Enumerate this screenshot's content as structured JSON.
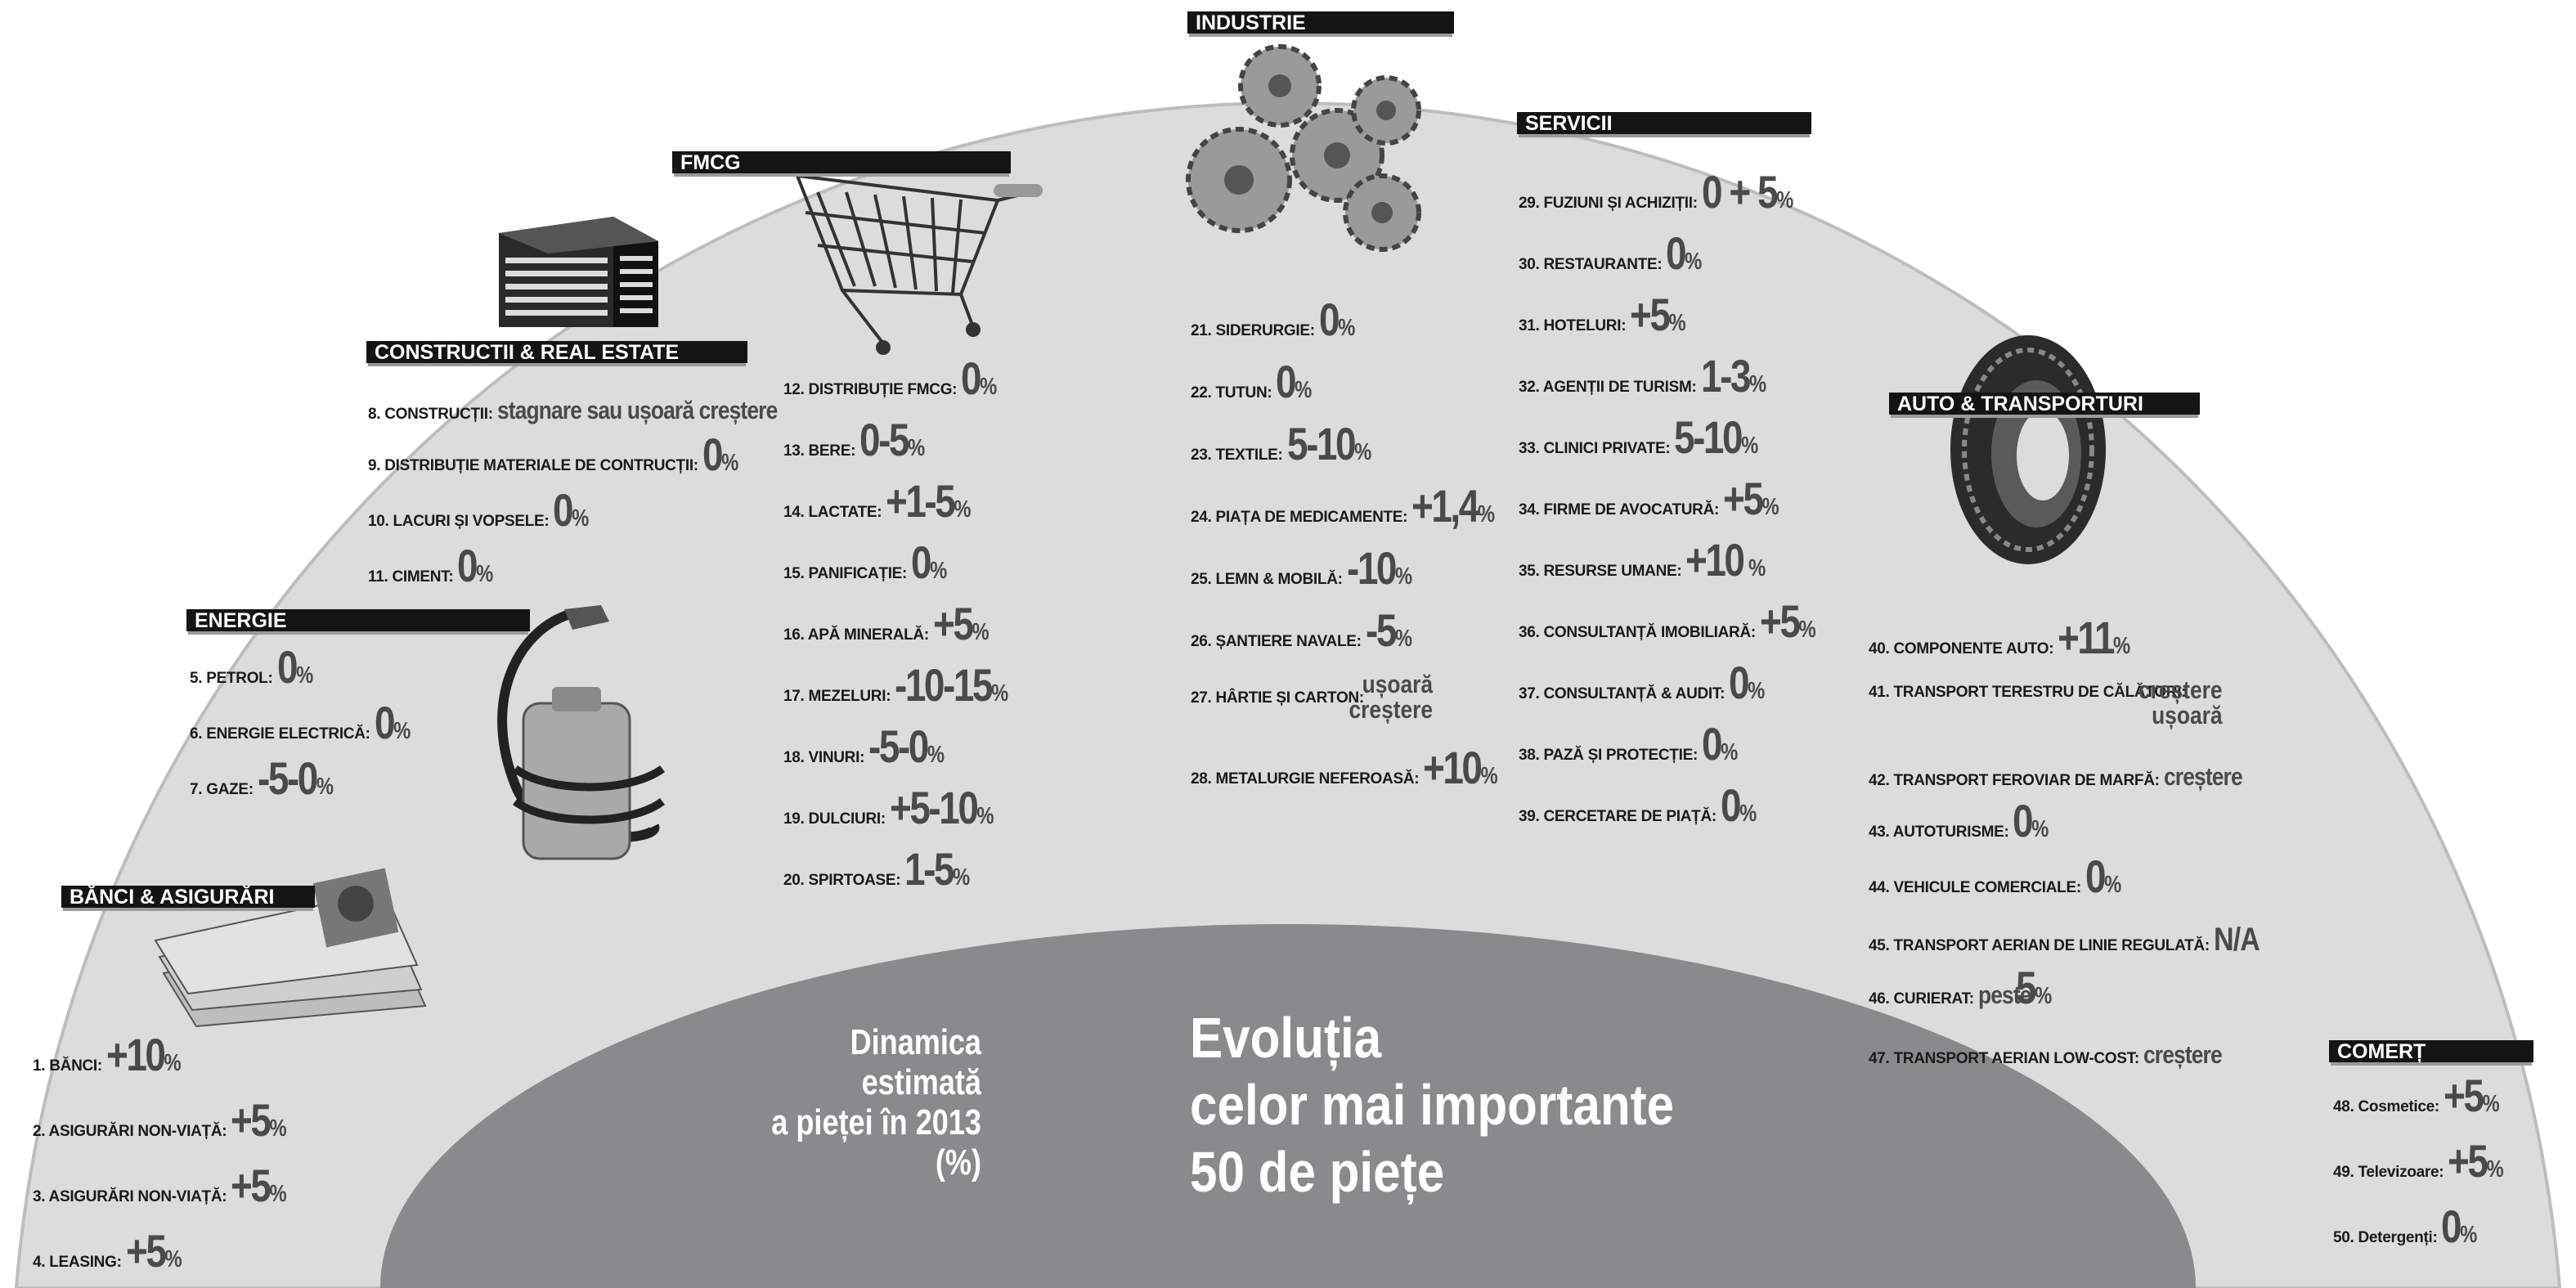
{
  "title": {
    "left": [
      "Dinamica",
      "estimată",
      "a pieței în 2013",
      "(%)"
    ],
    "right": [
      "Evoluția",
      "celor mai importante",
      "50 de piețe"
    ]
  },
  "colors": {
    "background_semicircle": "#dcdcdc",
    "inner_semicircle": "#8a8a8c",
    "header_bar": "#141414",
    "value_text": "#4a4a4a"
  },
  "icons": {
    "constructii": "office-building-icon",
    "fmcg": "shopping-cart-icon",
    "industrie": "gears-icon",
    "auto": "tire-icon",
    "energie": "fuel-canister-icon",
    "banci": "banknotes-icon"
  },
  "sections": {
    "banci": {
      "title": "BĂNCI & ASIGURĂRI",
      "items": [
        {
          "label": "1. BĂNCI:",
          "value": "+10",
          "unit": "%"
        },
        {
          "label": "2. ASIGURĂRI NON-VIAȚĂ:",
          "value": "+5",
          "unit": "%"
        },
        {
          "label": "3. ASIGURĂRI NON-VIAȚĂ:",
          "value": "+5",
          "unit": "%"
        },
        {
          "label": "4. LEASING:",
          "value": "+5",
          "unit": "%"
        }
      ]
    },
    "energie": {
      "title": "ENERGIE",
      "items": [
        {
          "label": "5. PETROL:",
          "value": "0",
          "unit": "%"
        },
        {
          "label": "6. ENERGIE ELECTRICĂ:",
          "value": "0",
          "unit": "%"
        },
        {
          "label": "7. GAZE:",
          "value": "-5-0",
          "unit": "%"
        }
      ]
    },
    "constructii": {
      "title": "CONSTRUCTII & REAL ESTATE",
      "items": [
        {
          "label": "8. CONSTRUCȚII:",
          "value": "stagnare sau ușoară creștere",
          "unit": ""
        },
        {
          "label": "9. DISTRIBUȚIE MATERIALE DE CONTRUCȚII:",
          "value": "0",
          "unit": "%"
        },
        {
          "label": "10. LACURI ȘI VOPSELE:",
          "value": "0",
          "unit": "%"
        },
        {
          "label": "11. CIMENT:",
          "value": "0",
          "unit": "%"
        }
      ]
    },
    "fmcg": {
      "title": "FMCG",
      "items": [
        {
          "label": "12. DISTRIBUȚIE FMCG:",
          "value": "0",
          "unit": "%"
        },
        {
          "label": "13. BERE:",
          "value": "0-5",
          "unit": "%"
        },
        {
          "label": "14. LACTATE:",
          "value": "+1-5",
          "unit": "%"
        },
        {
          "label": "15. PANIFICAȚIE:",
          "value": "0",
          "unit": "%"
        },
        {
          "label": "16. APĂ MINERALĂ:",
          "value": "+5",
          "unit": "%"
        },
        {
          "label": "17. MEZELURI:",
          "value": "-10-15",
          "unit": "%"
        },
        {
          "label": "18. VINURI:",
          "value": "-5-0",
          "unit": "%"
        },
        {
          "label": "19. DULCIURI:",
          "value": "+5-10",
          "unit": "%"
        },
        {
          "label": "20. SPIRTOASE:",
          "value": "1-5",
          "unit": "%"
        }
      ]
    },
    "industrie": {
      "title": "INDUSTRIE",
      "items": [
        {
          "label": "21. SIDERURGIE:",
          "value": "0",
          "unit": "%"
        },
        {
          "label": "22. TUTUN:",
          "value": "0",
          "unit": "%"
        },
        {
          "label": "23. TEXTILE:",
          "value": "5-10",
          "unit": "%"
        },
        {
          "label": "24. PIAȚA DE MEDICAMENTE:",
          "value": "+1,4",
          "unit": "%"
        },
        {
          "label": "25. LEMN & MOBILĂ:",
          "value": "-10",
          "unit": "%"
        },
        {
          "label": "26. ȘANTIERE NAVALE:",
          "value": "-5",
          "unit": "%"
        },
        {
          "label": "27. HÂRTIE ȘI CARTON:",
          "value": "ușoară",
          "value2": "creștere",
          "unit": ""
        },
        {
          "label": "28. METALURGIE NEFEROASĂ:",
          "value": "+10",
          "unit": "%"
        }
      ]
    },
    "servicii": {
      "title": "SERVICII",
      "items": [
        {
          "label": "29. FUZIUNI ȘI ACHIZIȚII:",
          "value": "0 + 5",
          "unit": "%"
        },
        {
          "label": "30. RESTAURANTE:",
          "value": "0",
          "unit": "%"
        },
        {
          "label": "31. HOTELURI:",
          "value": "+5",
          "unit": "%"
        },
        {
          "label": "32. AGENȚII DE TURISM:",
          "value": "1-3",
          "unit": "%"
        },
        {
          "label": "33. CLINICI PRIVATE:",
          "value": "5-10",
          "unit": "%"
        },
        {
          "label": "34. FIRME DE AVOCATURĂ:",
          "value": "+5",
          "unit": "%"
        },
        {
          "label": "35. RESURSE UMANE:",
          "value": "+10",
          "unit": " %"
        },
        {
          "label": "36. CONSULTANȚĂ IMOBILIARĂ:",
          "value": "+5",
          "unit": "%"
        },
        {
          "label": "37. CONSULTANȚĂ & AUDIT:",
          "value": "0",
          "unit": "%"
        },
        {
          "label": "38. PAZĂ ȘI PROTECȚIE:",
          "value": "0",
          "unit": "%"
        },
        {
          "label": "39. CERCETARE DE PIAȚĂ:",
          "value": "0",
          "unit": "%"
        }
      ]
    },
    "auto": {
      "title": "AUTO & TRANSPORTURI",
      "items": [
        {
          "label": "40. COMPONENTE AUTO:",
          "value": "+11",
          "unit": "%"
        },
        {
          "label": "41. TRANSPORT TERESTRU DE CĂLĂTORI:",
          "value": "creștere",
          "value2": "ușoară",
          "unit": ""
        },
        {
          "label": "42. TRANSPORT FEROVIAR DE MARFĂ:",
          "value": "creștere",
          "unit": ""
        },
        {
          "label": "43. AUTOTURISME:",
          "value": "0",
          "unit": "%"
        },
        {
          "label": "44. VEHICULE COMERCIALE:",
          "value": "0",
          "unit": "%"
        },
        {
          "label": "45. TRANSPORT AERIAN DE LINIE REGULATĂ:",
          "value": "N/A",
          "unit": ""
        },
        {
          "label": "46. CURIERAT:",
          "prefix": "peste",
          "value": "5",
          "unit": "%"
        },
        {
          "label": "47. TRANSPORT AERIAN LOW-COST:",
          "value": "creștere",
          "unit": ""
        }
      ]
    },
    "comert": {
      "title": "COMERȚ",
      "items": [
        {
          "label": "48. Cosmetice:",
          "value": "+5",
          "unit": "%"
        },
        {
          "label": "49. Televizoare:",
          "value": "+5",
          "unit": "%"
        },
        {
          "label": "50. Detergenți:",
          "value": "0",
          "unit": "%"
        }
      ]
    }
  }
}
